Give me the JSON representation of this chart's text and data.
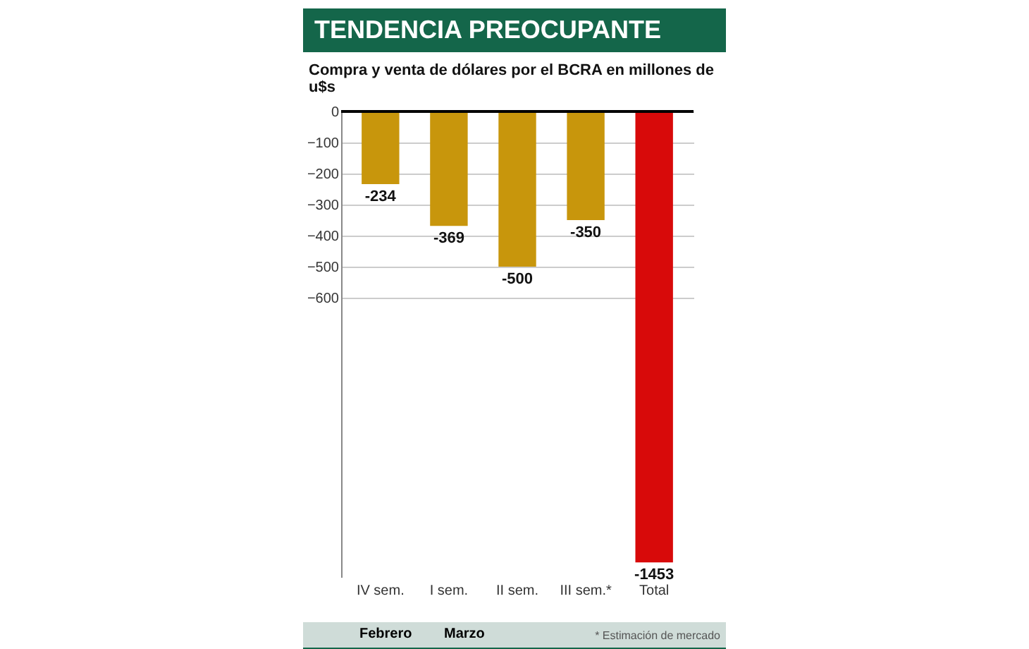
{
  "chart_data": {
    "type": "bar",
    "title": "TENDENCIA PREOCUPANTE",
    "subtitle": "Compra y venta de dólares por el BCRA en millones de u$s",
    "categories": [
      "IV sem.",
      "I sem.",
      "II sem.",
      "III sem.*",
      "Total"
    ],
    "values": [
      -234,
      -369,
      -500,
      -350,
      -1453
    ],
    "colors": [
      "#c8960c",
      "#c8960c",
      "#c8960c",
      "#c8960c",
      "#d80a0a"
    ],
    "ylim": [
      -1500,
      0
    ],
    "yticks": [
      0,
      -100,
      -200,
      -300,
      -400,
      -500,
      -600
    ],
    "grid": "y",
    "data_labels": true,
    "annotations": [
      "Febrero",
      "Marzo",
      "* Estimación de mercado"
    ]
  }
}
